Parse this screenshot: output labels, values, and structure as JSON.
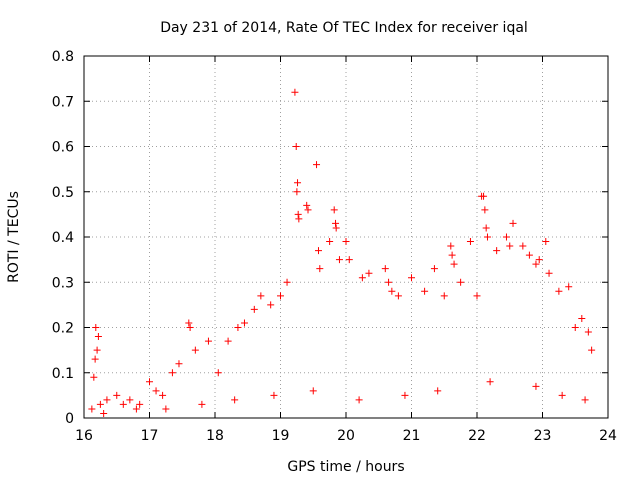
{
  "chart_data": {
    "type": "scatter",
    "title": "Day 231 of 2014, Rate Of TEC Index for receiver iqal",
    "xlabel": "GPS time / hours",
    "ylabel": "ROTI / TECUs",
    "xlim": [
      16,
      24
    ],
    "ylim": [
      0,
      0.8
    ],
    "xticks": [
      16,
      17,
      18,
      19,
      20,
      21,
      22,
      23,
      24
    ],
    "yticks": [
      0,
      0.1,
      0.2,
      0.3,
      0.4,
      0.5,
      0.6,
      0.7,
      0.8
    ],
    "xtick_labels": [
      "16",
      "17",
      "18",
      "19",
      "20",
      "21",
      "22",
      "23",
      "24"
    ],
    "ytick_labels": [
      "0",
      "0.1",
      "0.2",
      "0.3",
      "0.4",
      "0.5",
      "0.6",
      "0.7",
      "0.8"
    ],
    "grid": true,
    "marker": "+",
    "marker_color": "#ff0000",
    "series": [
      {
        "name": "ROTI",
        "points": [
          [
            16.15,
            0.09
          ],
          [
            16.18,
            0.2
          ],
          [
            16.2,
            0.15
          ],
          [
            16.17,
            0.13
          ],
          [
            16.22,
            0.18
          ],
          [
            16.12,
            0.02
          ],
          [
            16.25,
            0.03
          ],
          [
            16.35,
            0.04
          ],
          [
            16.5,
            0.05
          ],
          [
            16.6,
            0.03
          ],
          [
            16.7,
            0.04
          ],
          [
            16.85,
            0.03
          ],
          [
            17.0,
            0.08
          ],
          [
            17.1,
            0.06
          ],
          [
            17.2,
            0.05
          ],
          [
            17.35,
            0.1
          ],
          [
            17.45,
            0.12
          ],
          [
            17.6,
            0.21
          ],
          [
            17.62,
            0.2
          ],
          [
            17.7,
            0.15
          ],
          [
            17.9,
            0.17
          ],
          [
            18.05,
            0.1
          ],
          [
            18.2,
            0.17
          ],
          [
            18.35,
            0.2
          ],
          [
            18.45,
            0.21
          ],
          [
            18.6,
            0.24
          ],
          [
            18.7,
            0.27
          ],
          [
            18.85,
            0.25
          ],
          [
            19.0,
            0.27
          ],
          [
            19.1,
            0.3
          ],
          [
            19.22,
            0.72
          ],
          [
            19.24,
            0.6
          ],
          [
            19.26,
            0.52
          ],
          [
            19.25,
            0.5
          ],
          [
            19.27,
            0.45
          ],
          [
            19.28,
            0.44
          ],
          [
            19.4,
            0.47
          ],
          [
            19.42,
            0.46
          ],
          [
            19.55,
            0.56
          ],
          [
            19.58,
            0.37
          ],
          [
            19.6,
            0.33
          ],
          [
            19.75,
            0.39
          ],
          [
            19.82,
            0.46
          ],
          [
            19.84,
            0.43
          ],
          [
            19.85,
            0.42
          ],
          [
            19.9,
            0.35
          ],
          [
            20.0,
            0.39
          ],
          [
            20.05,
            0.35
          ],
          [
            20.25,
            0.31
          ],
          [
            20.35,
            0.32
          ],
          [
            20.6,
            0.33
          ],
          [
            20.65,
            0.3
          ],
          [
            20.7,
            0.28
          ],
          [
            20.8,
            0.27
          ],
          [
            21.0,
            0.31
          ],
          [
            21.2,
            0.28
          ],
          [
            21.35,
            0.33
          ],
          [
            21.5,
            0.27
          ],
          [
            21.6,
            0.38
          ],
          [
            21.62,
            0.36
          ],
          [
            21.65,
            0.34
          ],
          [
            21.75,
            0.3
          ],
          [
            21.9,
            0.39
          ],
          [
            22.0,
            0.27
          ],
          [
            22.07,
            0.49
          ],
          [
            22.1,
            0.49
          ],
          [
            22.12,
            0.46
          ],
          [
            22.14,
            0.42
          ],
          [
            22.16,
            0.4
          ],
          [
            22.3,
            0.37
          ],
          [
            22.45,
            0.4
          ],
          [
            22.5,
            0.38
          ],
          [
            22.55,
            0.43
          ],
          [
            22.7,
            0.38
          ],
          [
            22.8,
            0.36
          ],
          [
            22.9,
            0.34
          ],
          [
            22.95,
            0.35
          ],
          [
            23.05,
            0.39
          ],
          [
            23.1,
            0.32
          ],
          [
            23.25,
            0.28
          ],
          [
            23.4,
            0.29
          ],
          [
            23.5,
            0.2
          ],
          [
            23.6,
            0.22
          ],
          [
            23.7,
            0.19
          ],
          [
            23.75,
            0.15
          ],
          [
            16.3,
            0.01
          ],
          [
            16.8,
            0.02
          ],
          [
            17.25,
            0.02
          ],
          [
            17.8,
            0.03
          ],
          [
            18.3,
            0.04
          ],
          [
            18.9,
            0.05
          ],
          [
            19.5,
            0.06
          ],
          [
            20.2,
            0.04
          ],
          [
            20.9,
            0.05
          ],
          [
            21.4,
            0.06
          ],
          [
            22.2,
            0.08
          ],
          [
            22.9,
            0.07
          ],
          [
            23.3,
            0.05
          ],
          [
            23.65,
            0.04
          ]
        ]
      }
    ]
  }
}
